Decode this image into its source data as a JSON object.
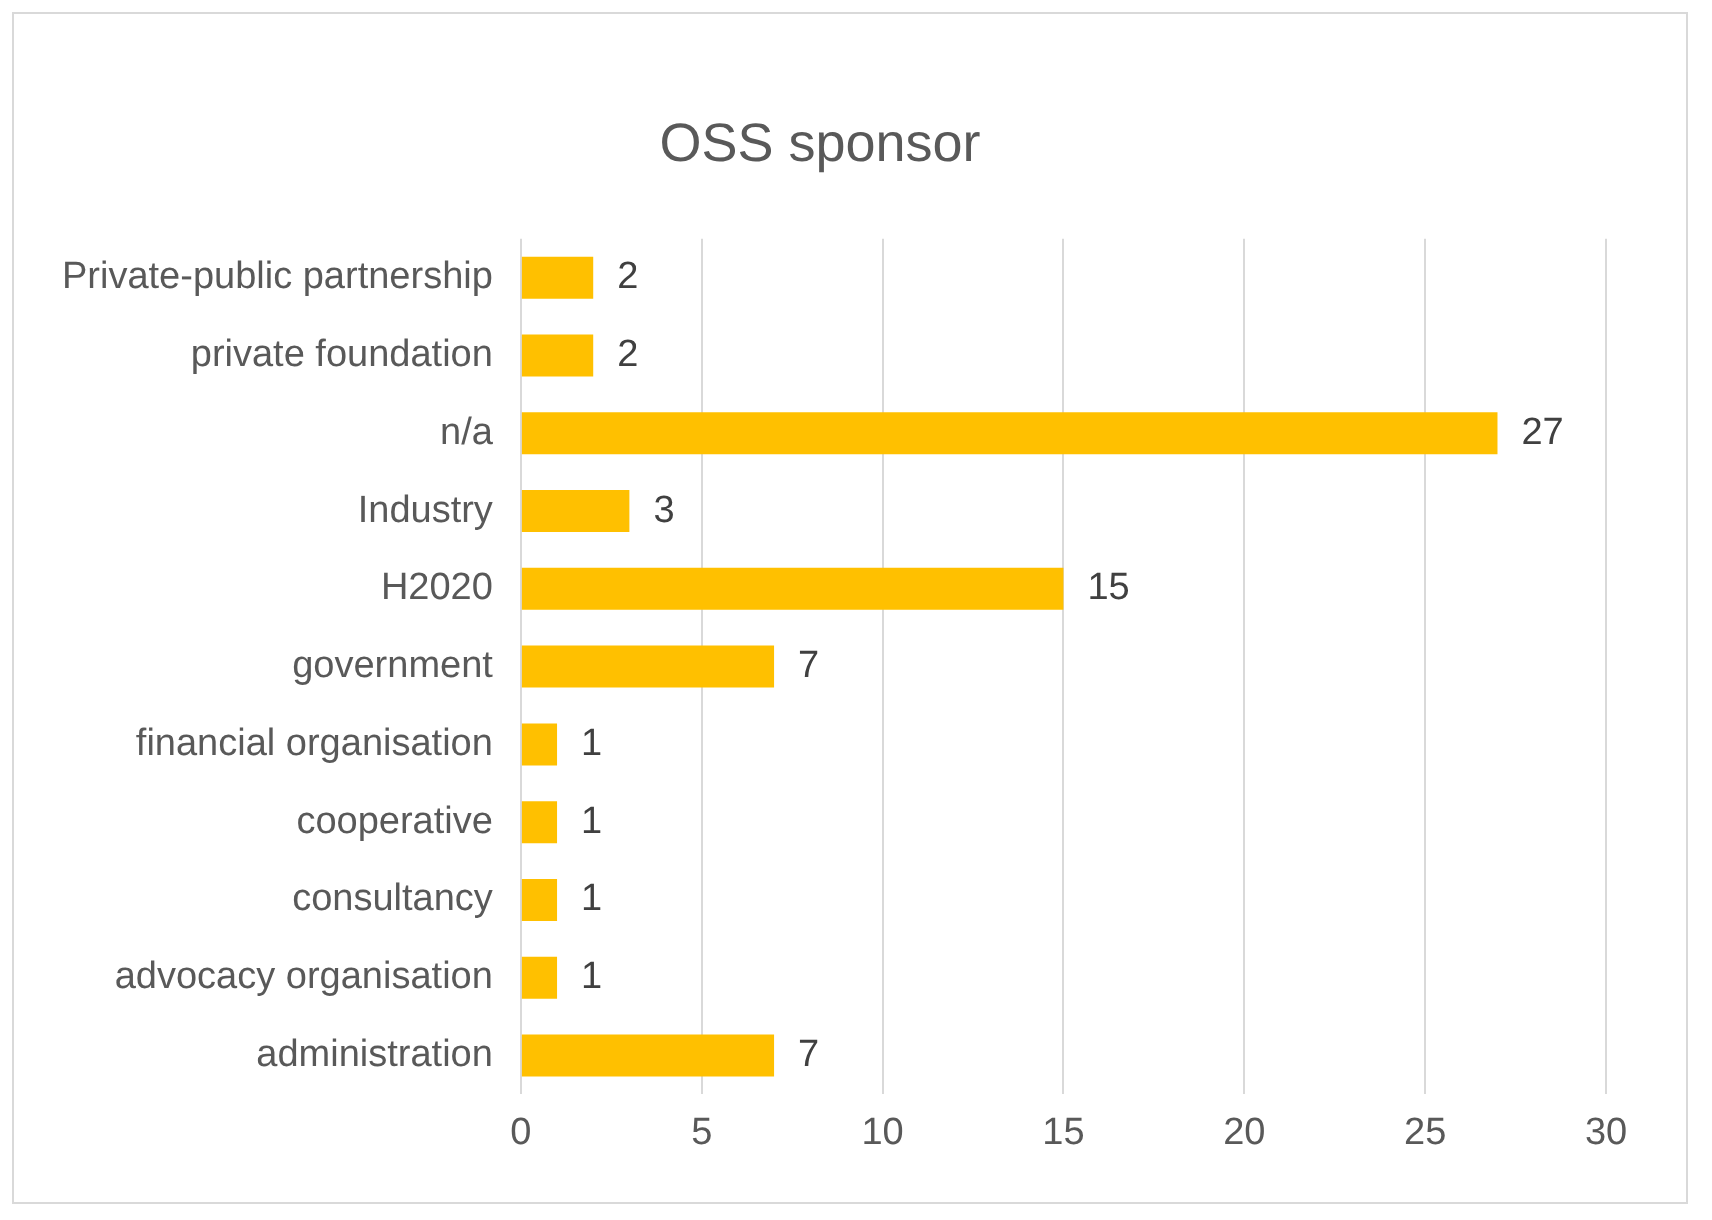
{
  "chart_data": {
    "type": "bar",
    "title": "OSS sponsor",
    "orientation": "horizontal",
    "categories": [
      "Private-public partnership",
      "private foundation",
      "n/a",
      "Industry",
      "H2020",
      "government",
      "financial organisation",
      "cooperative",
      "consultancy",
      "advocacy organisation",
      "administration"
    ],
    "values": [
      2,
      2,
      27,
      3,
      15,
      7,
      1,
      1,
      1,
      1,
      7
    ],
    "color": "#ffc000",
    "xlim": [
      0,
      30
    ],
    "xticks": [
      0,
      5,
      10,
      15,
      20,
      25,
      30
    ],
    "grid": "x",
    "data_labels": true
  }
}
